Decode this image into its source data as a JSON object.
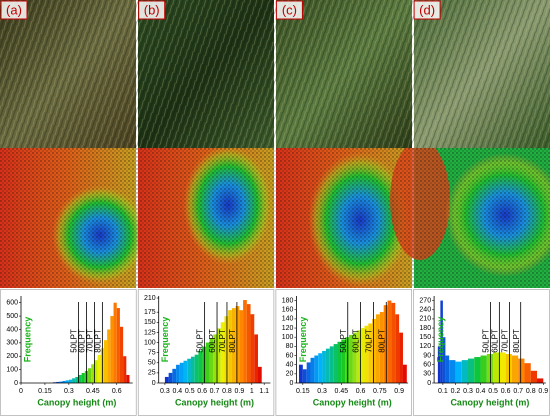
{
  "panel_labels": [
    "(a)",
    "(b)",
    "(c)",
    "(d)"
  ],
  "chart_data": [
    {
      "type": "histogram",
      "ylabel": "Frequency",
      "xlabel": "Canopy height (m)",
      "xlim": [
        0,
        0.7
      ],
      "xticks": [
        0,
        0.15,
        0.3,
        0.45,
        0.6
      ],
      "ylim": [
        0,
        650
      ],
      "yticks": [
        0,
        100,
        200,
        300,
        400,
        500,
        600
      ],
      "bins": [
        0.2,
        0.22,
        0.24,
        0.26,
        0.28,
        0.3,
        0.32,
        0.34,
        0.36,
        0.38,
        0.4,
        0.42,
        0.44,
        0.46,
        0.48,
        0.5,
        0.52,
        0.54,
        0.56,
        0.58,
        0.6,
        0.62,
        0.64,
        0.66,
        0.68
      ],
      "values": [
        5,
        8,
        10,
        15,
        20,
        25,
        35,
        45,
        60,
        75,
        90,
        110,
        140,
        170,
        210,
        260,
        320,
        400,
        500,
        600,
        560,
        420,
        200,
        60
      ],
      "colormap": [
        "#1028c8",
        "#00b4ff",
        "#10c820",
        "#f0f000",
        "#ff8000",
        "#e00000"
      ],
      "annotations": [
        {
          "label": "50LPT",
          "x": 0.36
        },
        {
          "label": "60LPT",
          "x": 0.41
        },
        {
          "label": "70LPT",
          "x": 0.46
        },
        {
          "label": "80LPT",
          "x": 0.51
        }
      ]
    },
    {
      "type": "histogram",
      "ylabel": "Frequency",
      "xlabel": "Canopy height (m)",
      "xlim": [
        0.25,
        1.15
      ],
      "xticks": [
        0.3,
        0.4,
        0.5,
        0.6,
        0.7,
        0.8,
        0.9,
        1,
        1.1
      ],
      "ylim": [
        0,
        215
      ],
      "yticks": [
        0,
        25,
        50,
        75,
        100,
        125,
        150,
        175,
        210
      ],
      "bins": [
        0.3,
        0.33,
        0.36,
        0.39,
        0.42,
        0.45,
        0.48,
        0.51,
        0.54,
        0.57,
        0.6,
        0.63,
        0.66,
        0.69,
        0.72,
        0.75,
        0.78,
        0.81,
        0.84,
        0.87,
        0.9,
        0.93,
        0.96,
        0.99,
        1.02,
        1.05,
        1.08
      ],
      "values": [
        15,
        25,
        35,
        45,
        50,
        55,
        60,
        65,
        70,
        80,
        90,
        100,
        110,
        120,
        135,
        150,
        165,
        180,
        185,
        190,
        180,
        205,
        195,
        170,
        120,
        40
      ],
      "colormap": [
        "#1028c8",
        "#00b4ff",
        "#10c820",
        "#f0f000",
        "#ff8000",
        "#e00000"
      ],
      "annotations": [
        {
          "label": "50LPT",
          "x": 0.62
        },
        {
          "label": "60LPT",
          "x": 0.72
        },
        {
          "label": "70LPT",
          "x": 0.8
        },
        {
          "label": "80LPT",
          "x": 0.88
        }
      ]
    },
    {
      "type": "histogram",
      "ylabel": "Frequency",
      "xlabel": "Canopy height (m)",
      "xlim": [
        0.1,
        0.97
      ],
      "xticks": [
        0.15,
        0.3,
        0.45,
        0.6,
        0.75,
        0.9
      ],
      "ylim": [
        0,
        190
      ],
      "yticks": [
        0,
        20,
        40,
        60,
        80,
        100,
        120,
        140,
        160,
        180
      ],
      "bins": [
        0.12,
        0.15,
        0.18,
        0.21,
        0.24,
        0.27,
        0.3,
        0.33,
        0.36,
        0.39,
        0.42,
        0.45,
        0.48,
        0.51,
        0.54,
        0.57,
        0.6,
        0.63,
        0.66,
        0.69,
        0.72,
        0.75,
        0.78,
        0.81,
        0.84,
        0.87,
        0.9,
        0.93,
        0.96
      ],
      "values": [
        40,
        30,
        45,
        55,
        60,
        65,
        70,
        75,
        80,
        85,
        90,
        95,
        100,
        105,
        110,
        115,
        120,
        125,
        130,
        140,
        150,
        155,
        170,
        180,
        175,
        150,
        110,
        40
      ],
      "colormap": [
        "#1028c8",
        "#00b4ff",
        "#10c820",
        "#f0f000",
        "#ff8000",
        "#e00000"
      ],
      "annotations": [
        {
          "label": "50LPT",
          "x": 0.5
        },
        {
          "label": "60LPT",
          "x": 0.6
        },
        {
          "label": "70LPT",
          "x": 0.7
        },
        {
          "label": "80LPT",
          "x": 0.8
        }
      ]
    },
    {
      "type": "histogram",
      "ylabel": "Frequency",
      "xlabel": "Canopy height (m)",
      "xlim": [
        0.03,
        0.92
      ],
      "xticks": [
        0.1,
        0.2,
        0.3,
        0.4,
        0.5,
        0.6,
        0.7,
        0.8,
        0.9
      ],
      "ylim": [
        0,
        285
      ],
      "yticks": [
        0,
        30,
        60,
        90,
        120,
        150,
        180,
        210,
        240,
        270
      ],
      "bins": [
        0.06,
        0.08,
        0.1,
        0.12,
        0.15,
        0.2,
        0.25,
        0.3,
        0.35,
        0.4,
        0.45,
        0.5,
        0.55,
        0.6,
        0.65,
        0.7,
        0.75,
        0.8,
        0.85,
        0.9
      ],
      "values": [
        120,
        270,
        150,
        90,
        75,
        70,
        75,
        80,
        85,
        90,
        95,
        100,
        100,
        95,
        90,
        80,
        65,
        40,
        15
      ],
      "colormap": [
        "#1028c8",
        "#00b4ff",
        "#10c820",
        "#f0f000",
        "#ff8000",
        "#e00000"
      ],
      "annotations": [
        {
          "label": "50LPT",
          "x": 0.48
        },
        {
          "label": "60LPT",
          "x": 0.55
        },
        {
          "label": "70LPT",
          "x": 0.63
        },
        {
          "label": "80LPT",
          "x": 0.72
        }
      ]
    }
  ]
}
